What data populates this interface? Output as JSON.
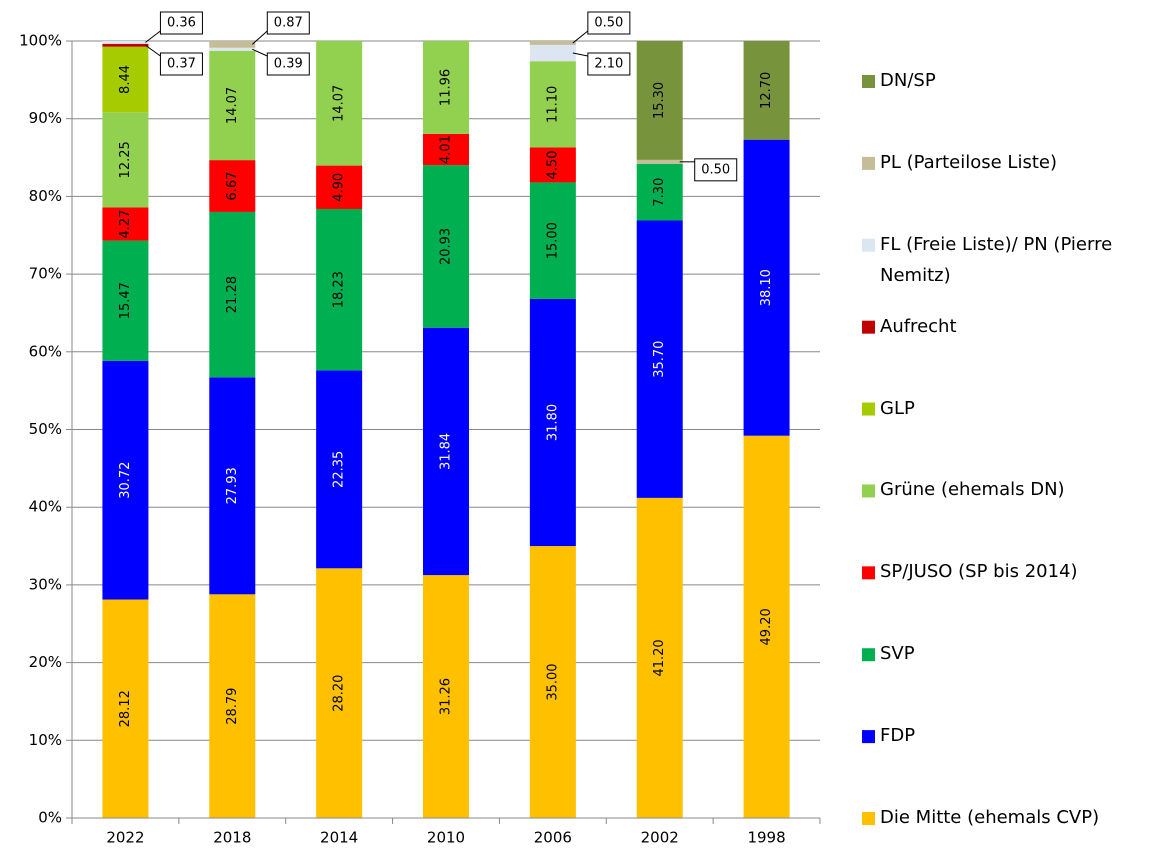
{
  "chart_data": {
    "type": "bar",
    "stacking": "percent",
    "categories": [
      "2022",
      "2018",
      "2014",
      "2010",
      "2006",
      "2002",
      "1998"
    ],
    "ylim": [
      0,
      100
    ],
    "yticks": [
      {
        "value": 0,
        "label": "0%"
      },
      {
        "value": 10,
        "label": "10%"
      },
      {
        "value": 20,
        "label": "20%"
      },
      {
        "value": 30,
        "label": "30%"
      },
      {
        "value": 40,
        "label": "40%"
      },
      {
        "value": 50,
        "label": "50%"
      },
      {
        "value": 60,
        "label": "60%"
      },
      {
        "value": 70,
        "label": "70%"
      },
      {
        "value": 80,
        "label": "80%"
      },
      {
        "value": 90,
        "label": "90%"
      },
      {
        "value": 100,
        "label": "100%"
      }
    ],
    "legend": "right",
    "series": [
      {
        "name": "Die Mitte (ehemals CVP)",
        "color": "#ffc000",
        "values": [
          28.12,
          28.79,
          28.2,
          31.26,
          35,
          41.2,
          49.2
        ],
        "value_labels": [
          "28.12",
          "28.79",
          "28.20",
          "31.26",
          "35.00",
          "41.20",
          "49.20"
        ]
      },
      {
        "name": "FDP",
        "color": "#0000ff",
        "values": [
          30.72,
          27.93,
          22.35,
          31.84,
          31.8,
          35.7,
          38.1
        ],
        "value_labels": [
          "30.72",
          "27.93",
          "22.35",
          "31.84",
          "31.80",
          "35.70",
          "38.10"
        ]
      },
      {
        "name": "SVP",
        "color": "#00b050",
        "values": [
          15.47,
          21.28,
          18.23,
          20.93,
          15,
          7.3,
          null
        ],
        "value_labels": [
          "15.47",
          "21.28",
          "18.23",
          "20.93",
          "15.00",
          "7.30",
          null
        ]
      },
      {
        "name": "SP/JUSO (SP bis 2014)",
        "color": "#ff0000",
        "values": [
          4.27,
          6.67,
          4.9,
          4.01,
          4.5,
          null,
          null
        ],
        "value_labels": [
          "4.27",
          "6.67",
          "4.90",
          "4.01",
          "4.50",
          null,
          null
        ]
      },
      {
        "name": "Grüne (ehemals DN)",
        "color": "#92d050",
        "values": [
          12.25,
          14.07,
          14.07,
          11.96,
          11.1,
          null,
          null
        ],
        "value_labels": [
          "12.25",
          "14.07",
          "14.07",
          "11.96",
          "11.10",
          null,
          null
        ]
      },
      {
        "name": "GLP",
        "color": "#a6cc00",
        "values": [
          8.44,
          null,
          null,
          null,
          null,
          null,
          null
        ],
        "value_labels": [
          "8.44",
          null,
          null,
          null,
          null,
          null,
          null
        ]
      },
      {
        "name": "Aufrecht",
        "color": "#c00000",
        "values": [
          0.37,
          null,
          null,
          null,
          null,
          null,
          null
        ],
        "value_labels": [
          "0.37",
          null,
          null,
          null,
          null,
          null,
          null
        ]
      },
      {
        "name": "FL (Freie Liste)/ PN (Pierre Nemitz)",
        "color": "#dce6f2",
        "values": [
          0.36,
          0.39,
          null,
          null,
          2.1,
          null,
          null
        ],
        "value_labels": [
          "0.36",
          "0.39",
          null,
          null,
          "2.10",
          null,
          null
        ]
      },
      {
        "name": "PL (Parteilose Liste)",
        "color": "#c4bd97",
        "values": [
          null,
          0.87,
          null,
          null,
          0.5,
          0.5,
          null
        ],
        "value_labels": [
          null,
          "0.87",
          null,
          null,
          "0.50",
          "0.50",
          null
        ]
      },
      {
        "name": "DN/SP",
        "color": "#77933c",
        "values": [
          null,
          null,
          null,
          null,
          null,
          15.3,
          12.7
        ],
        "value_labels": [
          null,
          null,
          null,
          null,
          null,
          "15.30",
          "12.70"
        ]
      }
    ]
  }
}
